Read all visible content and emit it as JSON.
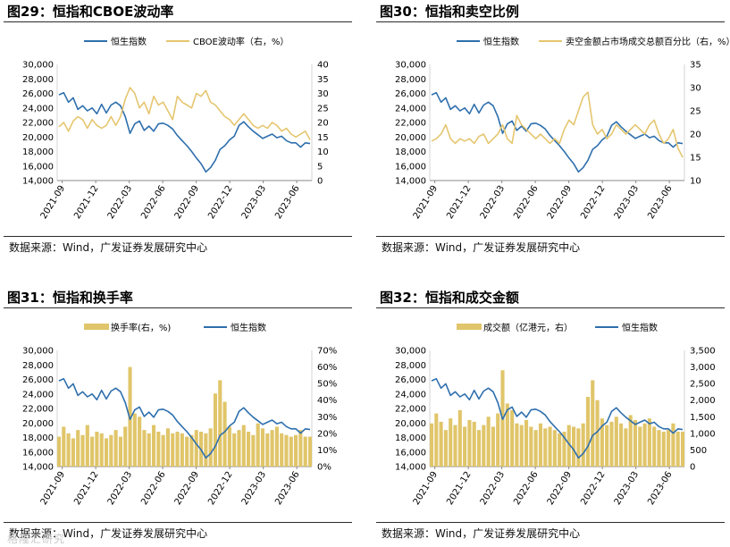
{
  "chart_data": [
    {
      "type": "line",
      "title": "图29：恒指和CBOE波动率",
      "x_ticks": [
        "2021-09",
        "2021-12",
        "2022-03",
        "2022-06",
        "2022-09",
        "2022-12",
        "2023-03",
        "2023-06"
      ],
      "left_axis": {
        "ticks": [
          "30,000",
          "28,000",
          "26,000",
          "24,000",
          "22,000",
          "20,000",
          "18,000",
          "16,000",
          "14,000"
        ],
        "ylim": [
          14000,
          30000
        ]
      },
      "right_axis": {
        "ticks": [
          "40",
          "35",
          "30",
          "25",
          "20",
          "15",
          "10",
          "5",
          "0"
        ],
        "ylim": [
          0,
          40
        ]
      },
      "series": [
        {
          "name": "恒生指数",
          "axis": "left",
          "color": "#2e6fad",
          "values": [
            25800,
            26100,
            24800,
            25400,
            23800,
            24300,
            23600,
            24000,
            23200,
            24500,
            23300,
            24400,
            24800,
            24300,
            22800,
            20500,
            21800,
            22200,
            20900,
            21500,
            20800,
            21800,
            21900,
            21600,
            21100,
            20200,
            19500,
            18800,
            18000,
            17100,
            16300,
            15200,
            15800,
            16800,
            18300,
            18800,
            19600,
            20100,
            21600,
            22100,
            21400,
            20800,
            20300,
            19800,
            20100,
            20400,
            19900,
            20100,
            19500,
            19200,
            19200,
            18600,
            19200,
            19100
          ]
        },
        {
          "name": "CBOE波动率（右，%）",
          "axis": "right",
          "color": "#e5c66f",
          "values": [
            18.5,
            20,
            17,
            20.5,
            22,
            21,
            18,
            21,
            19,
            18,
            19,
            22,
            19,
            22,
            28,
            32,
            30,
            25,
            27,
            23,
            29,
            26,
            27,
            24,
            21,
            29,
            27,
            26,
            25,
            30,
            29,
            31,
            27,
            26,
            24,
            22,
            21,
            19,
            21,
            23,
            21,
            19,
            18,
            19,
            18,
            20,
            19,
            17,
            18,
            16,
            15,
            16,
            17,
            14
          ]
        }
      ]
    },
    {
      "type": "line",
      "title": "图30：恒指和卖空比例",
      "x_ticks": [
        "2021-09",
        "2021-12",
        "2022-03",
        "2022-06",
        "2022-09",
        "2022-12",
        "2023-03",
        "2023-06"
      ],
      "left_axis": {
        "ticks": [
          "30,000",
          "28,000",
          "26,000",
          "24,000",
          "22,000",
          "20,000",
          "18,000",
          "16,000",
          "14,000"
        ],
        "ylim": [
          14000,
          30000
        ]
      },
      "right_axis": {
        "ticks": [
          "35",
          "30",
          "25",
          "20",
          "15",
          "10"
        ],
        "ylim": [
          10,
          35
        ]
      },
      "series": [
        {
          "name": "恒生指数",
          "axis": "left",
          "color": "#2e6fad",
          "values": [
            25800,
            26100,
            24800,
            25400,
            23800,
            24300,
            23600,
            24000,
            23200,
            24500,
            23300,
            24400,
            24800,
            24300,
            22800,
            20500,
            21800,
            22200,
            20900,
            21500,
            20800,
            21800,
            21900,
            21600,
            21100,
            20200,
            19500,
            18800,
            18000,
            17100,
            16300,
            15200,
            15800,
            16800,
            18300,
            18800,
            19600,
            20100,
            21600,
            22100,
            21400,
            20800,
            20300,
            19800,
            20100,
            20400,
            19900,
            20100,
            19500,
            19200,
            19200,
            18600,
            19200,
            19100
          ]
        },
        {
          "name": "卖空金额占市场成交总额百分比（右，%）",
          "axis": "right",
          "color": "#e5c66f",
          "values": [
            18.5,
            19,
            20,
            22,
            19,
            18,
            19,
            18.5,
            19,
            18,
            19.5,
            20,
            18,
            19,
            20,
            22,
            19,
            18,
            24,
            22,
            21,
            20,
            19,
            20,
            19,
            18,
            19,
            18,
            21,
            23,
            22,
            25,
            28,
            29,
            22,
            20,
            21,
            19,
            20,
            22,
            21,
            20,
            21,
            22,
            21,
            20,
            22,
            23,
            20,
            18,
            19,
            21,
            17,
            15
          ]
        }
      ]
    },
    {
      "type": "bar+line",
      "title": "图31：恒指和换手率",
      "x_ticks": [
        "2021-09",
        "2021-12",
        "2022-03",
        "2022-06",
        "2022-09",
        "2022-12",
        "2023-03",
        "2023-06"
      ],
      "left_axis": {
        "ticks": [
          "30,000",
          "28,000",
          "26,000",
          "24,000",
          "22,000",
          "20,000",
          "18,000",
          "16,000",
          "14,000"
        ],
        "ylim": [
          14000,
          30000
        ]
      },
      "right_axis": {
        "ticks": [
          "70%",
          "60%",
          "50%",
          "40%",
          "30%",
          "20%",
          "10%",
          "0%"
        ],
        "ylim": [
          0,
          70
        ]
      },
      "series": [
        {
          "name": "换手率(右，%)",
          "axis": "right",
          "kind": "bar",
          "color": "#e0c56a",
          "values": [
            18,
            24,
            20,
            17,
            22,
            19,
            25,
            18,
            21,
            20,
            17,
            19,
            22,
            18,
            24,
            60,
            32,
            30,
            22,
            20,
            25,
            21,
            19,
            23,
            20,
            21,
            20,
            18,
            19,
            22,
            21,
            20,
            23,
            44,
            52,
            39,
            24,
            20,
            22,
            25,
            21,
            19,
            26,
            23,
            20,
            22,
            24,
            20,
            19,
            18,
            19,
            22,
            18,
            18
          ]
        },
        {
          "name": "恒生指数",
          "axis": "left",
          "kind": "line",
          "color": "#2e6fad",
          "values": [
            25800,
            26100,
            24800,
            25400,
            23800,
            24300,
            23600,
            24000,
            23200,
            24500,
            23300,
            24400,
            24800,
            24300,
            22800,
            20500,
            21800,
            22200,
            20900,
            21500,
            20800,
            21800,
            21900,
            21600,
            21100,
            20200,
            19500,
            18800,
            18000,
            17100,
            16300,
            15200,
            15800,
            16800,
            18300,
            18800,
            19600,
            20100,
            21600,
            22100,
            21400,
            20800,
            20300,
            19800,
            20100,
            20400,
            19900,
            20100,
            19500,
            19200,
            19200,
            18600,
            19200,
            19100
          ]
        }
      ]
    },
    {
      "type": "bar+line",
      "title": "图32：恒指和成交金额",
      "x_ticks": [
        "2021-09",
        "2021-12",
        "2022-03",
        "2022-06",
        "2022-09",
        "2022-12",
        "2023-03",
        "2023-06"
      ],
      "left_axis": {
        "ticks": [
          "30,000",
          "28,000",
          "26,000",
          "24,000",
          "22,000",
          "20,000",
          "18,000",
          "16,000",
          "14,000"
        ],
        "ylim": [
          14000,
          30000
        ]
      },
      "right_axis": {
        "ticks": [
          "3,500",
          "3,000",
          "2,500",
          "2,000",
          "1,500",
          "1,000",
          "500",
          "0"
        ],
        "ylim": [
          0,
          3500
        ]
      },
      "series": [
        {
          "name": "成交额（亿港元，右）",
          "axis": "right",
          "kind": "bar",
          "color": "#e0c56a",
          "values": [
            1300,
            1600,
            1350,
            1100,
            1450,
            1250,
            1700,
            1200,
            1400,
            1350,
            1100,
            1250,
            1500,
            1200,
            1600,
            2900,
            1900,
            1700,
            1300,
            1250,
            1400,
            1200,
            1100,
            1300,
            1150,
            1200,
            1100,
            1000,
            1050,
            1250,
            1200,
            1150,
            1300,
            2100,
            2600,
            2000,
            1450,
            1250,
            1350,
            1500,
            1300,
            1150,
            1550,
            1400,
            1200,
            1300,
            1450,
            1200,
            1100,
            1050,
            1100,
            1300,
            1050,
            1050
          ]
        },
        {
          "name": "恒生指数",
          "axis": "left",
          "kind": "line",
          "color": "#2e6fad",
          "values": [
            25800,
            26100,
            24800,
            25400,
            23800,
            24300,
            23600,
            24000,
            23200,
            24500,
            23300,
            24400,
            24800,
            24300,
            22800,
            20500,
            21800,
            22200,
            20900,
            21500,
            20800,
            21800,
            21900,
            21600,
            21100,
            20200,
            19500,
            18800,
            18000,
            17100,
            16300,
            15200,
            15800,
            16800,
            18300,
            18800,
            19600,
            20100,
            21600,
            22100,
            21400,
            20800,
            20300,
            19800,
            20100,
            20400,
            19900,
            20100,
            19500,
            19200,
            19200,
            18600,
            19200,
            19100
          ]
        }
      ]
    }
  ],
  "source": "数据来源：Wind，广发证券发展研究中心",
  "watermark": "格隆汇研究"
}
